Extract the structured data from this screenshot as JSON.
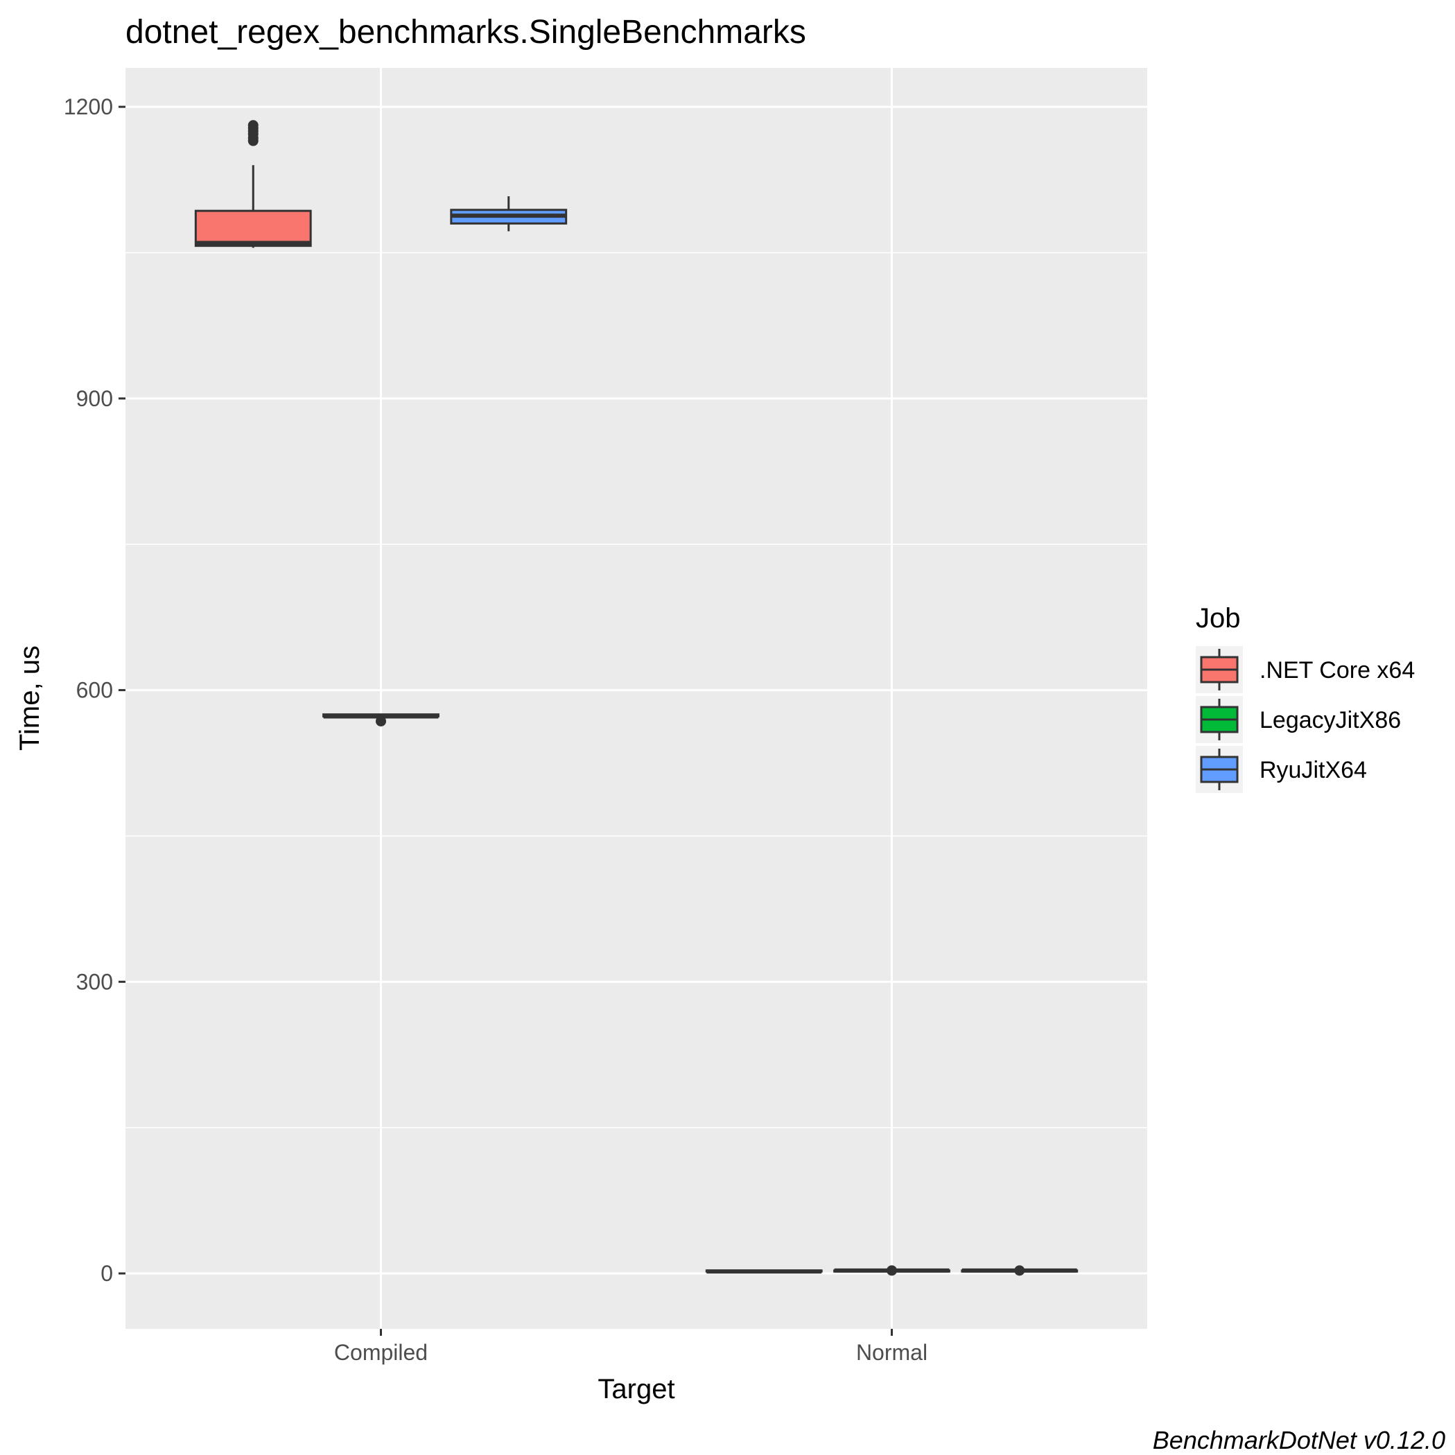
{
  "chart_data": {
    "type": "boxplot",
    "title": "dotnet_regex_benchmarks.SingleBenchmarks",
    "xlabel": "Target",
    "ylabel": "Time, us",
    "caption": "BenchmarkDotNet v0.12.0",
    "categories": [
      "Compiled",
      "Normal"
    ],
    "y_ticks": [
      0,
      300,
      600,
      900,
      1200
    ],
    "y_tick_labels": [
      "0",
      "300",
      "600",
      "900",
      "1200"
    ],
    "ylim": [
      -57,
      1240
    ],
    "grid": true,
    "legend": {
      "title": "Job",
      "position": "right",
      "entries": [
        ".NET Core x64",
        "LegacyJitX86",
        "RyuJitX64"
      ]
    },
    "series": [
      {
        "name": ".NET Core x64",
        "color": "#F8766D",
        "boxes": [
          {
            "category": "Compiled",
            "whisker_low": 1055,
            "q1": 1057,
            "median": 1060,
            "q3": 1093,
            "whisker_high": 1140,
            "outliers": [
              1165,
              1168,
              1172,
              1175,
              1178,
              1181
            ]
          },
          {
            "category": "Normal",
            "whisker_low": 2,
            "q1": 2,
            "median": 2,
            "q3": 3,
            "whisker_high": 3,
            "outliers": []
          }
        ]
      },
      {
        "name": "LegacyJitX86",
        "color": "#00BA38",
        "boxes": [
          {
            "category": "Compiled",
            "whisker_low": 572,
            "q1": 573,
            "median": 573,
            "q3": 575,
            "whisker_high": 575,
            "outliers": [
              568
            ]
          },
          {
            "category": "Normal",
            "whisker_low": 2,
            "q1": 2,
            "median": 3,
            "q3": 3,
            "whisker_high": 4,
            "outliers": [
              3
            ]
          }
        ]
      },
      {
        "name": "RyuJitX64",
        "color": "#619CFF",
        "boxes": [
          {
            "category": "Compiled",
            "whisker_low": 1072,
            "q1": 1080,
            "median": 1088,
            "q3": 1094,
            "whisker_high": 1108,
            "outliers": []
          },
          {
            "category": "Normal",
            "whisker_low": 2,
            "q1": 2,
            "median": 3,
            "q3": 3,
            "whisker_high": 4,
            "outliers": [
              3
            ]
          }
        ]
      }
    ]
  }
}
